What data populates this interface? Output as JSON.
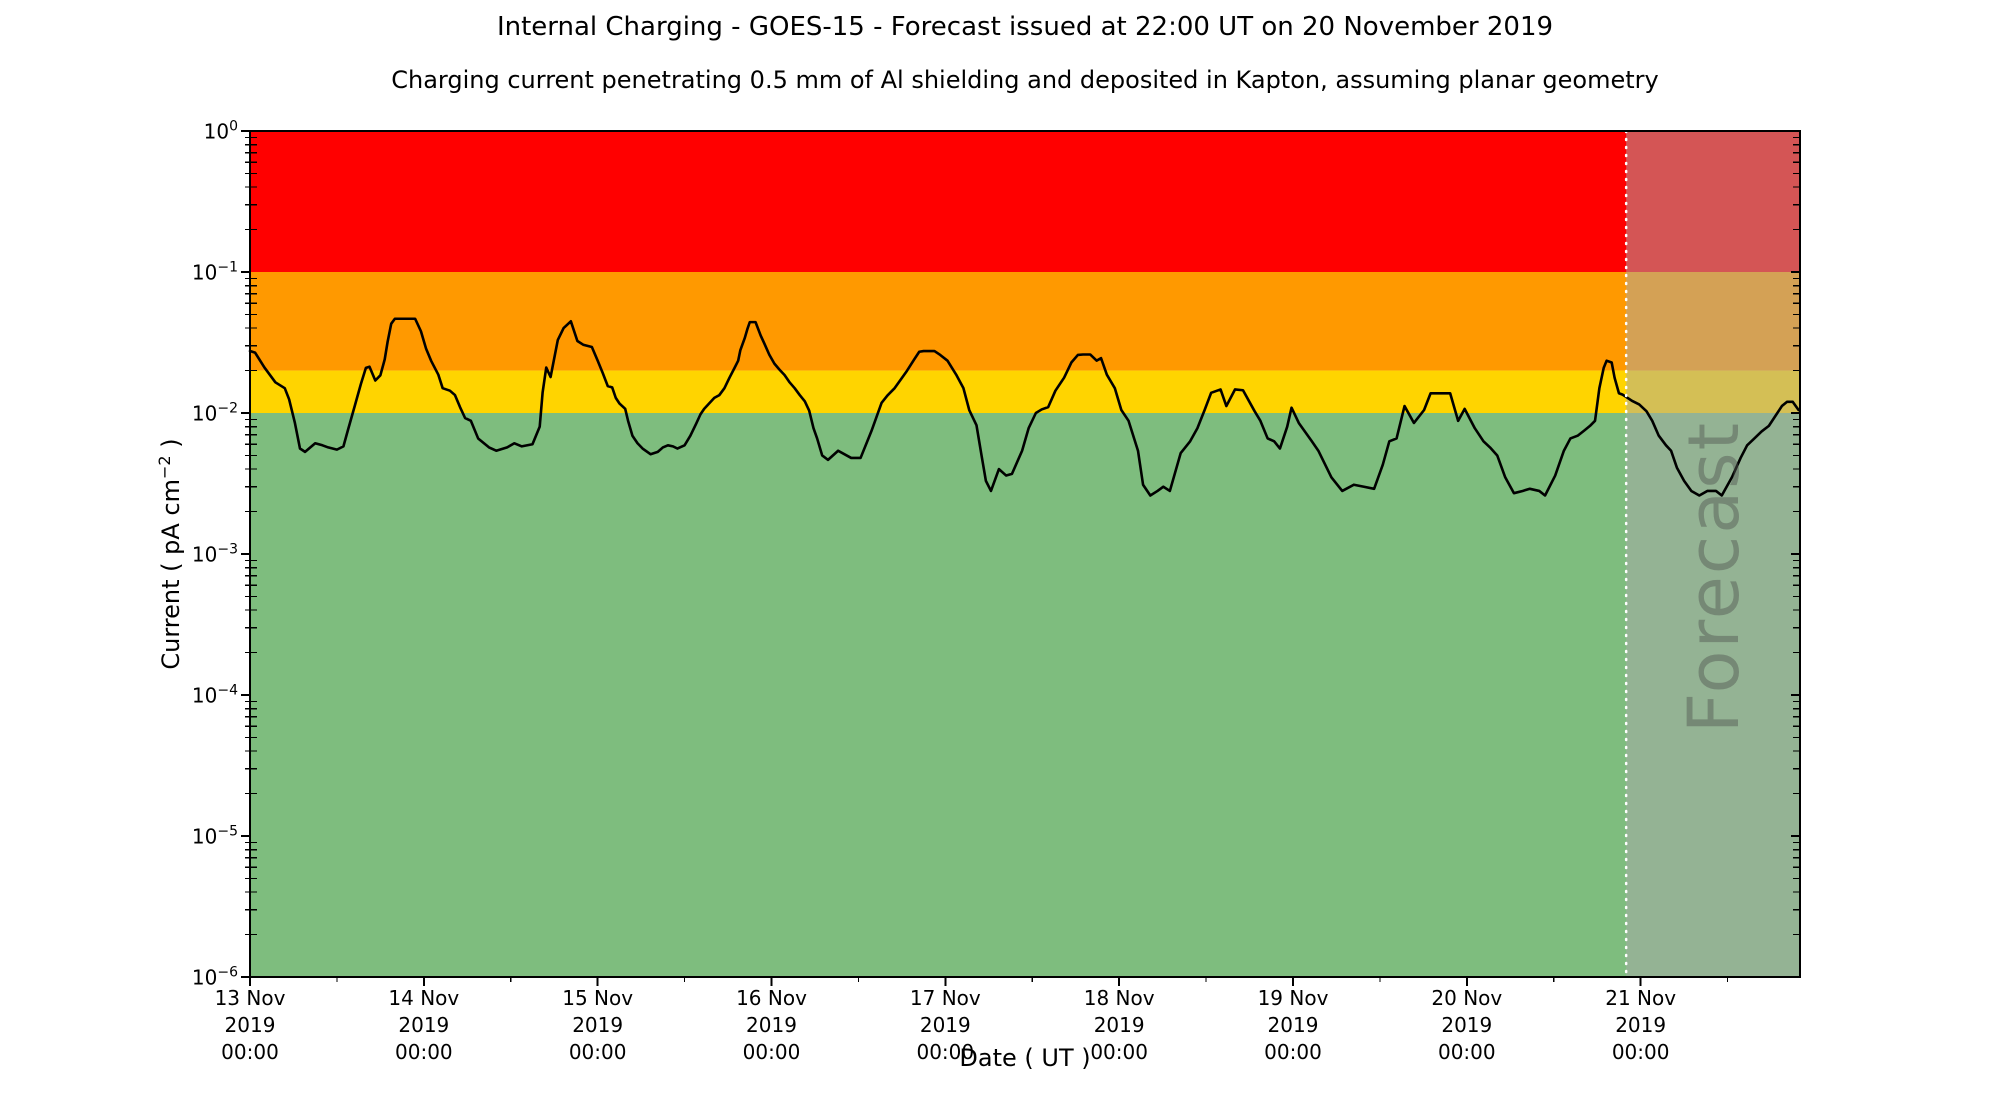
{
  "figure": {
    "title": "Internal Charging - GOES-15 - Forecast issued at 22:00 UT on 20 November 2019",
    "subtitle": "Charging current penetrating 0.5 mm of Al shielding and deposited in Kapton, assuming planar geometry",
    "background_color": "#ffffff"
  },
  "x_axis": {
    "label": "Date ( UT )",
    "ticks": [
      {
        "date": "13 Nov",
        "year": "2019",
        "time": "00:00"
      },
      {
        "date": "14 Nov",
        "year": "2019",
        "time": "00:00"
      },
      {
        "date": "15 Nov",
        "year": "2019",
        "time": "00:00"
      },
      {
        "date": "16 Nov",
        "year": "2019",
        "time": "00:00"
      },
      {
        "date": "17 Nov",
        "year": "2019",
        "time": "00:00"
      },
      {
        "date": "18 Nov",
        "year": "2019",
        "time": "00:00"
      },
      {
        "date": "19 Nov",
        "year": "2019",
        "time": "00:00"
      },
      {
        "date": "20 Nov",
        "year": "2019",
        "time": "00:00"
      },
      {
        "date": "21 Nov",
        "year": "2019",
        "time": "00:00"
      }
    ],
    "minor_tick_interval_hours": 12
  },
  "y_axis": {
    "label_prefix": "Current ( pA cm",
    "label_sup": "−2",
    "label_suffix": " )",
    "tick_exponents": [
      0,
      -1,
      -2,
      -3,
      -4,
      -5,
      -6
    ]
  },
  "chart_data": {
    "type": "line",
    "title": "Internal Charging - GOES-15 - Forecast issued at 22:00 UT on 20 November 2019",
    "subtitle": "Charging current penetrating 0.5 mm of Al shielding and deposited in Kapton, assuming planar geometry",
    "xlabel": "Date ( UT )",
    "ylabel": "Current ( pA cm^-2 )",
    "y_scale": "log",
    "ylim": [
      1e-06,
      1
    ],
    "x_start": "13 Nov 2019 00:00 UT",
    "x_end_hours": 214,
    "grid": false,
    "legend": false,
    "bands": [
      {
        "name": "red-alert",
        "from": 0.1,
        "to": 1,
        "color": "#FF0000"
      },
      {
        "name": "orange-alert",
        "from": 0.02,
        "to": 0.1,
        "color": "#FF9900"
      },
      {
        "name": "yellow-alert",
        "from": 0.01,
        "to": 0.02,
        "color": "#FFD400"
      },
      {
        "name": "green-quiet",
        "from": 1e-06,
        "to": 0.01,
        "color": "#7EBD7E"
      }
    ],
    "forecast": {
      "label": "Forecast",
      "start_hour": 190,
      "start_time": "20 Nov 2019 22:00 UT",
      "overlay_color": "rgba(170,170,170,0.5)",
      "divider_color": "#ffffff",
      "divider_style": "dotted"
    },
    "series": [
      {
        "name": "charging-current",
        "color": "#000000",
        "units": "pA cm^-2",
        "points": [
          [
            0,
            0.0275
          ],
          [
            0.7,
            0.0268
          ],
          [
            2,
            0.021
          ],
          [
            3.5,
            0.0165
          ],
          [
            4.8,
            0.015
          ],
          [
            5.4,
            0.0125
          ],
          [
            6.2,
            0.0085
          ],
          [
            6.9,
            0.0056
          ],
          [
            7.6,
            0.0053
          ],
          [
            9,
            0.0061
          ],
          [
            10,
            0.0059
          ],
          [
            10.8,
            0.0057
          ],
          [
            12,
            0.0055
          ],
          [
            12.9,
            0.0058
          ],
          [
            13.5,
            0.0075
          ],
          [
            14.5,
            0.0114
          ],
          [
            15.3,
            0.016
          ],
          [
            16,
            0.0209
          ],
          [
            16.5,
            0.0213
          ],
          [
            17.3,
            0.017
          ],
          [
            18,
            0.0185
          ],
          [
            18.6,
            0.024
          ],
          [
            19,
            0.032
          ],
          [
            19.5,
            0.043
          ],
          [
            20,
            0.0466
          ],
          [
            22.8,
            0.0466
          ],
          [
            23.6,
            0.038
          ],
          [
            24.3,
            0.0287
          ],
          [
            25,
            0.0235
          ],
          [
            26,
            0.0187
          ],
          [
            26.6,
            0.015
          ],
          [
            27.6,
            0.0144
          ],
          [
            28.3,
            0.0134
          ],
          [
            29,
            0.011
          ],
          [
            29.7,
            0.0092
          ],
          [
            30.5,
            0.0088
          ],
          [
            31.5,
            0.0066
          ],
          [
            33,
            0.0057
          ],
          [
            34,
            0.0054
          ],
          [
            35.5,
            0.0057
          ],
          [
            36.5,
            0.0061
          ],
          [
            37.5,
            0.0058
          ],
          [
            39,
            0.006
          ],
          [
            40,
            0.008
          ],
          [
            40.4,
            0.014
          ],
          [
            40.9,
            0.021
          ],
          [
            41.5,
            0.018
          ],
          [
            42.5,
            0.033
          ],
          [
            43.3,
            0.04
          ],
          [
            44.3,
            0.0447
          ],
          [
            45.2,
            0.0324
          ],
          [
            46,
            0.0305
          ],
          [
            47.2,
            0.0294
          ],
          [
            48,
            0.0235
          ],
          [
            48.7,
            0.0192
          ],
          [
            49.4,
            0.0155
          ],
          [
            50,
            0.0152
          ],
          [
            50.5,
            0.0128
          ],
          [
            51,
            0.0117
          ],
          [
            51.8,
            0.0107
          ],
          [
            52.2,
            0.0088
          ],
          [
            52.8,
            0.0069
          ],
          [
            53.5,
            0.0061
          ],
          [
            54.2,
            0.0056
          ],
          [
            55.3,
            0.0051
          ],
          [
            56.3,
            0.0053
          ],
          [
            57,
            0.0057
          ],
          [
            57.7,
            0.0059
          ],
          [
            58.4,
            0.0058
          ],
          [
            59,
            0.0056
          ],
          [
            60,
            0.0059
          ],
          [
            60.8,
            0.0069
          ],
          [
            61.6,
            0.0084
          ],
          [
            62.2,
            0.0098
          ],
          [
            62.7,
            0.0107
          ],
          [
            63.4,
            0.0117
          ],
          [
            64.1,
            0.0128
          ],
          [
            64.8,
            0.0134
          ],
          [
            65.5,
            0.015
          ],
          [
            66.2,
            0.0178
          ],
          [
            66.9,
            0.0209
          ],
          [
            67.4,
            0.0235
          ],
          [
            67.7,
            0.0279
          ],
          [
            68.3,
            0.0339
          ],
          [
            68.7,
            0.0398
          ],
          [
            69,
            0.0441
          ],
          [
            69.8,
            0.0441
          ],
          [
            70.5,
            0.0355
          ],
          [
            71,
            0.0312
          ],
          [
            71.7,
            0.0259
          ],
          [
            72.4,
            0.0224
          ],
          [
            73.1,
            0.0203
          ],
          [
            73.8,
            0.0186
          ],
          [
            74.5,
            0.0165
          ],
          [
            75.2,
            0.015
          ],
          [
            75.9,
            0.0134
          ],
          [
            76.6,
            0.0121
          ],
          [
            77.2,
            0.0104
          ],
          [
            77.8,
            0.0078
          ],
          [
            78.3,
            0.0066
          ],
          [
            79,
            0.005
          ],
          [
            79.8,
            0.00465
          ],
          [
            81.2,
            0.0054
          ],
          [
            83,
            0.0048
          ],
          [
            84.3,
            0.0048
          ],
          [
            85.8,
            0.00745
          ],
          [
            87.2,
            0.0118
          ],
          [
            88,
            0.0133
          ],
          [
            89,
            0.015
          ],
          [
            90.7,
            0.0199
          ],
          [
            91.7,
            0.024
          ],
          [
            92.4,
            0.0272
          ],
          [
            93,
            0.0275
          ],
          [
            94.5,
            0.0275
          ],
          [
            95.3,
            0.0258
          ],
          [
            96.3,
            0.0235
          ],
          [
            97.5,
            0.0187
          ],
          [
            98.5,
            0.015
          ],
          [
            99.3,
            0.0105
          ],
          [
            100.3,
            0.0082
          ],
          [
            101,
            0.005
          ],
          [
            101.6,
            0.0033
          ],
          [
            102.3,
            0.0028
          ],
          [
            103.4,
            0.004
          ],
          [
            104.4,
            0.0036
          ],
          [
            105.2,
            0.0037
          ],
          [
            106.6,
            0.0054
          ],
          [
            107.5,
            0.0078
          ],
          [
            108.5,
            0.01
          ],
          [
            109.3,
            0.0106
          ],
          [
            110.2,
            0.011
          ],
          [
            111.2,
            0.0144
          ],
          [
            112.4,
            0.0178
          ],
          [
            113.4,
            0.0228
          ],
          [
            114.3,
            0.0258
          ],
          [
            115,
            0.026
          ],
          [
            116,
            0.026
          ],
          [
            116.9,
            0.0235
          ],
          [
            117.5,
            0.0245
          ],
          [
            118.3,
            0.0187
          ],
          [
            119.4,
            0.015
          ],
          [
            120.3,
            0.0105
          ],
          [
            121.3,
            0.0088
          ],
          [
            122.6,
            0.0054
          ],
          [
            123.3,
            0.0031
          ],
          [
            124.3,
            0.0026
          ],
          [
            125.3,
            0.0028
          ],
          [
            126.1,
            0.003
          ],
          [
            127,
            0.0028
          ],
          [
            128.5,
            0.0052
          ],
          [
            129.8,
            0.0063
          ],
          [
            130.8,
            0.0078
          ],
          [
            131.8,
            0.0105
          ],
          [
            132.7,
            0.0139
          ],
          [
            134,
            0.0147
          ],
          [
            134.8,
            0.0112
          ],
          [
            136,
            0.0147
          ],
          [
            137.1,
            0.0145
          ],
          [
            138.7,
            0.0103
          ],
          [
            139.5,
            0.0088
          ],
          [
            140.5,
            0.0066
          ],
          [
            141.4,
            0.0063
          ],
          [
            142.2,
            0.0056
          ],
          [
            143.2,
            0.008
          ],
          [
            143.8,
            0.0109
          ],
          [
            144.8,
            0.0085
          ],
          [
            146.6,
            0.0063
          ],
          [
            147.5,
            0.0054
          ],
          [
            149.3,
            0.0035
          ],
          [
            150.8,
            0.0028
          ],
          [
            152.4,
            0.0031
          ],
          [
            153.8,
            0.003
          ],
          [
            155.2,
            0.0029
          ],
          [
            156.4,
            0.0043
          ],
          [
            157.3,
            0.0063
          ],
          [
            158.3,
            0.0066
          ],
          [
            159.4,
            0.0112
          ],
          [
            160.7,
            0.0085
          ],
          [
            162.1,
            0.0105
          ],
          [
            163,
            0.0138
          ],
          [
            165.7,
            0.0138
          ],
          [
            166.8,
            0.0088
          ],
          [
            167.7,
            0.0107
          ],
          [
            169.1,
            0.0078
          ],
          [
            170.3,
            0.0063
          ],
          [
            171.2,
            0.0057
          ],
          [
            172.2,
            0.005
          ],
          [
            173.3,
            0.0035
          ],
          [
            174.5,
            0.0027
          ],
          [
            175.7,
            0.0028
          ],
          [
            176.7,
            0.0029
          ],
          [
            178,
            0.0028
          ],
          [
            178.8,
            0.0026
          ],
          [
            180.2,
            0.0036
          ],
          [
            181.4,
            0.0054
          ],
          [
            182.3,
            0.0066
          ],
          [
            183.3,
            0.0069
          ],
          [
            184.2,
            0.0075
          ],
          [
            185,
            0.0081
          ],
          [
            185.7,
            0.0088
          ],
          [
            186.3,
            0.015
          ],
          [
            186.9,
            0.0209
          ],
          [
            187.3,
            0.0235
          ],
          [
            188,
            0.0228
          ],
          [
            188.4,
            0.0178
          ],
          [
            189,
            0.0138
          ],
          [
            189.5,
            0.0135
          ],
          [
            190,
            0.013
          ],
          [
            190.8,
            0.0122
          ],
          [
            191.8,
            0.0115
          ],
          [
            192.8,
            0.0103
          ],
          [
            193.6,
            0.0088
          ],
          [
            194.5,
            0.0069
          ],
          [
            195.5,
            0.0059
          ],
          [
            196.2,
            0.0054
          ],
          [
            197,
            0.0041
          ],
          [
            198,
            0.0033
          ],
          [
            199,
            0.0028
          ],
          [
            200.1,
            0.0026
          ],
          [
            201.2,
            0.0028
          ],
          [
            202.4,
            0.0028
          ],
          [
            203.2,
            0.0026
          ],
          [
            204.6,
            0.0035
          ],
          [
            205.8,
            0.0048
          ],
          [
            206.7,
            0.0059
          ],
          [
            207.7,
            0.0066
          ],
          [
            208.7,
            0.0074
          ],
          [
            209.7,
            0.0081
          ],
          [
            210.7,
            0.0097
          ],
          [
            211.5,
            0.0112
          ],
          [
            212.2,
            0.012
          ],
          [
            213,
            0.012
          ],
          [
            213.8,
            0.0105
          ]
        ]
      }
    ]
  }
}
